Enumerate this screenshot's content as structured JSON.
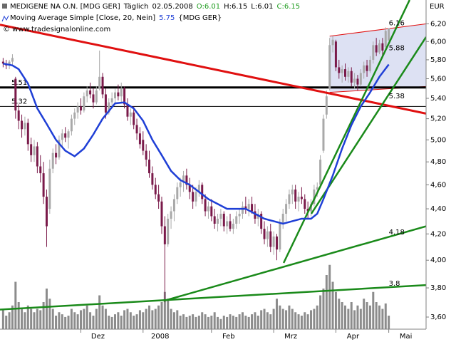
{
  "chart_data": {
    "type": "candlestick",
    "header": {
      "symbol": "MEDIGENE NA O.N. [MDG GER]",
      "interval": "Täglich",
      "date": "02.05.2008",
      "open": "O:6.01",
      "high": "H:6.15",
      "low": "L:6.01",
      "close": "C:6.15",
      "up_text_color": "#1a9a1a"
    },
    "copyright": "© www.tradesignalonline.com",
    "currency": "EUR",
    "log_scale": true,
    "xlim": [
      -1,
      136
    ],
    "xticks": [
      {
        "value": 25,
        "label": "Dez"
      },
      {
        "value": 45,
        "label": "2008"
      },
      {
        "value": 67,
        "label": "Feb"
      },
      {
        "value": 87,
        "label": "Mrz"
      },
      {
        "value": 107,
        "label": "Apr"
      },
      {
        "value": 124,
        "label": "Mai"
      }
    ],
    "ylim": [
      3.52,
      6.48
    ],
    "yticks": [
      {
        "value": 6.2,
        "label": "6,20"
      },
      {
        "value": 6.0,
        "label": "6,00"
      },
      {
        "value": 5.8,
        "label": "5,80"
      },
      {
        "value": 5.6,
        "label": "5,60"
      },
      {
        "value": 5.4,
        "label": "5,40"
      },
      {
        "value": 5.2,
        "label": "5,20"
      },
      {
        "value": 5.0,
        "label": "5,00"
      },
      {
        "value": 4.8,
        "label": "4,80"
      },
      {
        "value": 4.6,
        "label": "4,60"
      },
      {
        "value": 4.4,
        "label": "4,40"
      },
      {
        "value": 4.2,
        "label": "4,20"
      },
      {
        "value": 4.0,
        "label": "4,00"
      },
      {
        "value": 3.8,
        "label": "3,80"
      },
      {
        "value": 3.6,
        "label": "3,60"
      }
    ],
    "up_color": "#a9a9a9",
    "down_color": "#7a1a4a",
    "open": [
      5.78,
      5.76,
      5.74,
      5.78,
      5.6,
      5.28,
      5.18,
      5.1,
      5.16,
      4.96,
      4.86,
      4.94,
      4.76,
      4.7,
      4.5,
      4.4,
      4.74,
      4.88,
      4.84,
      5.0,
      5.06,
      5.02,
      5.08,
      5.2,
      5.26,
      5.32,
      5.28,
      5.42,
      5.48,
      5.44,
      5.36,
      5.5,
      5.62,
      5.44,
      5.26,
      5.36,
      5.4,
      5.46,
      5.42,
      5.5,
      5.34,
      5.22,
      5.26,
      5.14,
      5.06,
      5.0,
      4.9,
      4.82,
      4.7,
      4.6,
      4.52,
      4.46,
      4.26,
      4.12,
      4.32,
      4.38,
      4.48,
      4.58,
      4.62,
      4.68,
      4.6,
      4.54,
      4.46,
      4.54,
      4.6,
      4.48,
      4.38,
      4.42,
      4.34,
      4.28,
      4.32,
      4.36,
      4.26,
      4.3,
      4.24,
      4.28,
      4.34,
      4.36,
      4.42,
      4.4,
      4.44,
      4.38,
      4.32,
      4.36,
      4.24,
      4.16,
      4.22,
      4.1,
      4.18,
      4.08,
      4.28,
      4.36,
      4.44,
      4.52,
      4.56,
      4.46,
      4.5,
      4.48,
      4.4,
      4.38,
      4.44,
      4.56,
      4.6,
      4.9,
      5.24,
      5.5,
      5.96,
      6.0,
      5.72,
      5.66,
      5.7,
      5.62,
      5.68,
      5.56,
      5.6,
      5.54,
      5.66,
      5.74,
      5.68,
      5.8,
      5.96,
      5.88,
      5.98,
      5.94,
      6.01
    ],
    "high": [
      5.82,
      5.8,
      5.8,
      5.86,
      5.62,
      5.34,
      5.24,
      5.22,
      5.2,
      5.02,
      5.0,
      4.98,
      4.86,
      4.8,
      4.56,
      4.82,
      4.92,
      4.96,
      5.04,
      5.1,
      5.12,
      5.1,
      5.24,
      5.3,
      5.36,
      5.4,
      5.46,
      5.52,
      5.56,
      5.5,
      5.52,
      5.9,
      5.66,
      5.5,
      5.4,
      5.46,
      5.5,
      5.54,
      5.56,
      5.52,
      5.4,
      5.3,
      5.32,
      5.2,
      5.12,
      5.08,
      4.96,
      4.9,
      4.76,
      4.66,
      4.6,
      4.5,
      4.34,
      4.36,
      4.42,
      4.52,
      4.62,
      4.66,
      4.72,
      4.74,
      4.66,
      4.6,
      4.58,
      4.64,
      4.62,
      4.52,
      4.46,
      4.48,
      4.4,
      4.36,
      4.4,
      4.38,
      4.34,
      4.36,
      4.32,
      4.38,
      4.4,
      4.46,
      4.5,
      4.48,
      4.5,
      4.44,
      4.4,
      4.38,
      4.3,
      4.26,
      4.28,
      4.22,
      4.2,
      4.32,
      4.4,
      4.48,
      4.56,
      4.6,
      4.6,
      4.54,
      4.58,
      4.52,
      4.46,
      4.48,
      4.6,
      4.62,
      4.86,
      5.24,
      5.48,
      6.04,
      6.06,
      6.02,
      5.8,
      5.74,
      5.76,
      5.72,
      5.72,
      5.66,
      5.64,
      5.7,
      5.78,
      5.8,
      5.84,
      6.0,
      6.04,
      6.02,
      6.04,
      6.16,
      6.15
    ],
    "low": [
      5.72,
      5.7,
      5.7,
      5.74,
      5.2,
      5.1,
      5.02,
      5.04,
      4.9,
      4.8,
      4.8,
      4.7,
      4.62,
      4.44,
      4.1,
      4.36,
      4.7,
      4.78,
      4.82,
      4.94,
      4.98,
      4.92,
      5.04,
      5.14,
      5.2,
      5.24,
      5.26,
      5.36,
      5.4,
      5.3,
      5.34,
      5.48,
      5.4,
      5.2,
      5.24,
      5.3,
      5.34,
      5.38,
      5.36,
      5.3,
      5.18,
      5.14,
      5.1,
      5.0,
      4.92,
      4.86,
      4.76,
      4.66,
      4.56,
      4.48,
      4.4,
      4.2,
      3.7,
      4.1,
      4.24,
      4.3,
      4.44,
      4.5,
      4.54,
      4.56,
      4.48,
      4.4,
      4.42,
      4.5,
      4.44,
      4.34,
      4.32,
      4.3,
      4.24,
      4.22,
      4.26,
      4.22,
      4.2,
      4.22,
      4.2,
      4.24,
      4.28,
      4.32,
      4.36,
      4.34,
      4.36,
      4.28,
      4.26,
      4.2,
      4.12,
      4.1,
      4.06,
      4.04,
      4.0,
      4.06,
      4.24,
      4.3,
      4.4,
      4.44,
      4.4,
      4.38,
      4.44,
      4.36,
      4.32,
      4.34,
      4.42,
      4.5,
      4.58,
      4.88,
      5.2,
      5.48,
      5.88,
      5.68,
      5.6,
      5.56,
      5.58,
      5.56,
      5.52,
      5.5,
      5.48,
      5.52,
      5.6,
      5.62,
      5.66,
      5.76,
      5.84,
      5.86,
      5.82,
      5.92,
      6.01
    ],
    "close": [
      5.76,
      5.74,
      5.78,
      5.82,
      5.28,
      5.18,
      5.1,
      5.16,
      4.96,
      4.86,
      4.94,
      4.76,
      4.7,
      4.5,
      4.26,
      4.74,
      4.88,
      4.84,
      5.0,
      5.06,
      5.02,
      5.08,
      5.2,
      5.26,
      5.32,
      5.28,
      5.42,
      5.48,
      5.44,
      5.36,
      5.48,
      5.62,
      5.44,
      5.26,
      5.36,
      5.4,
      5.46,
      5.42,
      5.5,
      5.34,
      5.22,
      5.26,
      5.14,
      5.06,
      4.96,
      4.9,
      4.82,
      4.7,
      4.6,
      4.52,
      4.46,
      4.26,
      4.12,
      4.32,
      4.38,
      4.48,
      4.58,
      4.62,
      4.68,
      4.6,
      4.54,
      4.46,
      4.54,
      4.6,
      4.48,
      4.38,
      4.42,
      4.34,
      4.28,
      4.32,
      4.36,
      4.26,
      4.3,
      4.24,
      4.28,
      4.34,
      4.36,
      4.42,
      4.4,
      4.44,
      4.38,
      4.32,
      4.36,
      4.24,
      4.16,
      4.22,
      4.1,
      4.18,
      4.08,
      4.28,
      4.36,
      4.44,
      4.52,
      4.56,
      4.46,
      4.5,
      4.48,
      4.4,
      4.38,
      4.44,
      4.56,
      4.58,
      4.82,
      5.2,
      5.42,
      5.96,
      6.02,
      5.72,
      5.66,
      5.7,
      5.62,
      5.68,
      5.56,
      5.6,
      5.54,
      5.66,
      5.74,
      5.68,
      5.8,
      5.96,
      5.88,
      5.98,
      5.9,
      6.12,
      6.15
    ],
    "volume_color": "#8c8c8c",
    "volume_lim": [
      0,
      100
    ],
    "volume": [
      30,
      20,
      25,
      35,
      70,
      40,
      30,
      25,
      35,
      30,
      25,
      30,
      28,
      40,
      60,
      45,
      30,
      20,
      25,
      22,
      18,
      20,
      30,
      25,
      22,
      28,
      30,
      35,
      25,
      20,
      30,
      50,
      35,
      30,
      20,
      18,
      22,
      25,
      20,
      28,
      30,
      25,
      20,
      22,
      28,
      25,
      30,
      35,
      28,
      30,
      35,
      40,
      55,
      45,
      30,
      25,
      28,
      20,
      22,
      18,
      20,
      22,
      18,
      20,
      25,
      22,
      18,
      20,
      25,
      18,
      15,
      20,
      18,
      22,
      20,
      18,
      22,
      25,
      20,
      18,
      22,
      25,
      20,
      28,
      30,
      25,
      22,
      30,
      45,
      35,
      30,
      28,
      35,
      30,
      25,
      22,
      20,
      25,
      22,
      28,
      30,
      35,
      50,
      60,
      80,
      95,
      70,
      55,
      45,
      40,
      35,
      30,
      40,
      28,
      35,
      30,
      45,
      40,
      35,
      55,
      40,
      35,
      30,
      38,
      20
    ],
    "moving_average": {
      "name": "Moving Average Simple [Close, 20, Nein]",
      "value_label": "5.75",
      "suffix": "{MDG GER}",
      "color": "#1f3fd6",
      "x": [
        0,
        3,
        5,
        8,
        11,
        14,
        17,
        20,
        23,
        26,
        29,
        32,
        36,
        39,
        42,
        45,
        48,
        51,
        54,
        57,
        60,
        63,
        66,
        69,
        72,
        75,
        78,
        81,
        84,
        87,
        90,
        93,
        96,
        99,
        101,
        103,
        106,
        109,
        112,
        115,
        118,
        121,
        124
      ],
      "values": [
        5.76,
        5.74,
        5.7,
        5.55,
        5.3,
        5.15,
        5.0,
        4.9,
        4.85,
        4.92,
        5.05,
        5.2,
        5.35,
        5.36,
        5.3,
        5.18,
        5.0,
        4.86,
        4.72,
        4.64,
        4.6,
        4.54,
        4.48,
        4.44,
        4.4,
        4.4,
        4.4,
        4.36,
        4.32,
        4.3,
        4.28,
        4.3,
        4.32,
        4.32,
        4.36,
        4.48,
        4.68,
        4.92,
        5.14,
        5.32,
        5.46,
        5.62,
        5.75
      ]
    },
    "channel": {
      "x": [
        105,
        136
      ],
      "upper": [
        6.06,
        6.2
      ],
      "lower": [
        5.46,
        5.52
      ],
      "color": "#e01010",
      "fill": "#dde1f3"
    },
    "hlines": [
      {
        "value": 5.51,
        "label": "5.51",
        "width": 3,
        "color": "#000000"
      },
      {
        "value": 5.32,
        "label": "5.32",
        "width": 1,
        "color": "#000000"
      }
    ],
    "lines": [
      {
        "x": [
          -1,
          136
        ],
        "y": [
          6.19,
          5.25
        ],
        "color": "#e01010",
        "width": 3
      },
      {
        "x": [
          51.7,
          136
        ],
        "y": [
          3.71,
          4.26
        ],
        "color": "#1a8a1a",
        "width": 2.5
      },
      {
        "x": [
          -1,
          136
        ],
        "y": [
          3.65,
          3.82
        ],
        "color": "#1a8a1a",
        "width": 2.5
      },
      {
        "x": [
          90.2,
          130.7
        ],
        "y": [
          3.98,
          6.48
        ],
        "color": "#1a8a1a",
        "width": 2.5
      },
      {
        "x": [
          99.1,
          136
        ],
        "y": [
          4.36,
          6.05
        ],
        "color": "#1a8a1a",
        "width": 2.5
      }
    ],
    "annotations": [
      {
        "label": "6.16",
        "value": 6.16,
        "color": "#cc0000"
      },
      {
        "label": "5.88",
        "value": 5.88,
        "color": "#1a8a1a"
      },
      {
        "label": "5.38",
        "value": 5.38,
        "color": "#1a8a1a"
      },
      {
        "label": "4.18",
        "value": 4.18,
        "color": "#1a8a1a"
      },
      {
        "label": "3.8",
        "value": 3.8,
        "color": "#1a8a1a"
      }
    ]
  }
}
